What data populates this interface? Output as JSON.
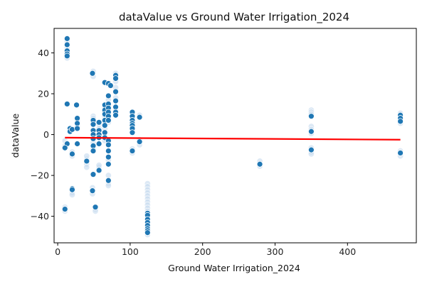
{
  "chart_data": {
    "type": "scatter",
    "title": "dataValue vs Ground Water Irrigation_2024",
    "xlabel": "Ground Water Irrigation_2024",
    "ylabel": "dataValue",
    "xlim": [
      -5,
      495
    ],
    "ylim": [
      -53,
      52
    ],
    "xticks": [
      0,
      100,
      200,
      300,
      400
    ],
    "yticks": [
      -40,
      -20,
      0,
      20,
      40
    ],
    "grid": false,
    "colors": {
      "points": "#1f77b4",
      "halo": "#c6dbef",
      "trend": "#ff0000"
    },
    "trend_line": {
      "x": [
        10,
        473
      ],
      "y": [
        -1.5,
        -2.5
      ]
    },
    "points": [
      [
        13,
        47
      ],
      [
        13,
        44
      ],
      [
        13,
        41
      ],
      [
        13,
        39.5
      ],
      [
        13,
        38.5
      ],
      [
        13,
        15
      ],
      [
        13,
        -4.5
      ],
      [
        10,
        -6.5
      ],
      [
        10,
        -36.5
      ],
      [
        17,
        3
      ],
      [
        17,
        1.5
      ],
      [
        20,
        2.5
      ],
      [
        20,
        -9.5
      ],
      [
        20,
        -26.5
      ],
      [
        20,
        -27
      ],
      [
        26,
        14.5
      ],
      [
        27,
        8
      ],
      [
        27,
        5.5
      ],
      [
        27,
        3
      ],
      [
        27,
        -4.5
      ],
      [
        40,
        -13
      ],
      [
        48,
        30
      ],
      [
        49,
        7
      ],
      [
        49,
        5
      ],
      [
        49,
        2
      ],
      [
        49,
        0
      ],
      [
        49,
        -2
      ],
      [
        49,
        -5.5
      ],
      [
        49,
        -8
      ],
      [
        49,
        -19.5
      ],
      [
        48,
        -27.5
      ],
      [
        52,
        -35.5
      ],
      [
        57,
        6
      ],
      [
        57,
        2
      ],
      [
        57,
        0
      ],
      [
        57,
        -1.5
      ],
      [
        57,
        -4.5
      ],
      [
        57,
        -17.5
      ],
      [
        65,
        25.5
      ],
      [
        65,
        14.5
      ],
      [
        65,
        12
      ],
      [
        65,
        10
      ],
      [
        65,
        7
      ],
      [
        65,
        4.5
      ],
      [
        65,
        1
      ],
      [
        65,
        -1.5
      ],
      [
        70,
        25
      ],
      [
        70,
        19
      ],
      [
        70,
        15
      ],
      [
        70,
        13
      ],
      [
        70,
        11
      ],
      [
        70,
        9
      ],
      [
        70,
        7
      ],
      [
        70,
        -3
      ],
      [
        70,
        -5
      ],
      [
        70,
        -8
      ],
      [
        70,
        -11
      ],
      [
        70,
        -14.5
      ],
      [
        70,
        -22.5
      ],
      [
        73,
        24
      ],
      [
        80,
        29
      ],
      [
        80,
        27.5
      ],
      [
        80,
        21
      ],
      [
        80,
        16.5
      ],
      [
        80,
        13.5
      ],
      [
        80,
        11
      ],
      [
        80,
        9.5
      ],
      [
        103,
        11
      ],
      [
        103,
        9
      ],
      [
        103,
        7
      ],
      [
        103,
        5.5
      ],
      [
        103,
        4.5
      ],
      [
        103,
        3
      ],
      [
        103,
        1
      ],
      [
        103,
        -8
      ],
      [
        113,
        8.5
      ],
      [
        113,
        -3.5
      ],
      [
        124,
        -38.5
      ],
      [
        124,
        -39.5
      ],
      [
        124,
        -41.5
      ],
      [
        124,
        -43
      ],
      [
        124,
        -44.5
      ],
      [
        124,
        -46
      ],
      [
        124,
        -47
      ],
      [
        124,
        -48
      ],
      [
        279,
        -14.5
      ],
      [
        350,
        9
      ],
      [
        350,
        1.5
      ],
      [
        350,
        -7.5
      ],
      [
        473,
        9.5
      ],
      [
        473,
        8
      ],
      [
        473,
        6.5
      ],
      [
        473,
        -9
      ]
    ],
    "halo_points": [
      [
        13,
        45.5
      ],
      [
        13,
        42.5
      ],
      [
        13,
        40
      ],
      [
        13,
        37.5
      ],
      [
        10,
        -35.5
      ],
      [
        10,
        -37.5
      ],
      [
        10,
        -5.5
      ],
      [
        10,
        -3
      ],
      [
        20,
        -28.5
      ],
      [
        20,
        -29.5
      ],
      [
        20,
        -10.5
      ],
      [
        20,
        -8.5
      ],
      [
        27,
        6.5
      ],
      [
        27,
        4
      ],
      [
        40,
        -12
      ],
      [
        40,
        -14.5
      ],
      [
        40,
        -16
      ],
      [
        40,
        -10.5
      ],
      [
        49,
        31
      ],
      [
        49,
        28.5
      ],
      [
        49,
        9
      ],
      [
        49,
        8
      ],
      [
        49,
        6
      ],
      [
        49,
        -4
      ],
      [
        49,
        -7
      ],
      [
        48,
        -26
      ],
      [
        48,
        -29
      ],
      [
        52,
        -36.5
      ],
      [
        52,
        -37.5
      ],
      [
        57,
        -16
      ],
      [
        57,
        -15
      ],
      [
        57,
        5
      ],
      [
        57,
        3
      ],
      [
        65,
        13
      ],
      [
        65,
        11
      ],
      [
        65,
        9
      ],
      [
        65,
        6
      ],
      [
        65,
        3
      ],
      [
        65,
        -3
      ],
      [
        70,
        17
      ],
      [
        70,
        12
      ],
      [
        70,
        6
      ],
      [
        70,
        -20
      ],
      [
        70,
        -24
      ],
      [
        70,
        -25
      ],
      [
        70,
        -12.5
      ],
      [
        80,
        30
      ],
      [
        80,
        28
      ],
      [
        80,
        26
      ],
      [
        80,
        23
      ],
      [
        80,
        18
      ],
      [
        80,
        12
      ],
      [
        103,
        10
      ],
      [
        103,
        8
      ],
      [
        103,
        6
      ],
      [
        103,
        2
      ],
      [
        103,
        -7
      ],
      [
        103,
        -9
      ],
      [
        113,
        9.5
      ],
      [
        113,
        -2.5
      ],
      [
        113,
        -5
      ],
      [
        124,
        -24
      ],
      [
        124,
        -25.5
      ],
      [
        124,
        -27
      ],
      [
        124,
        -28.5
      ],
      [
        124,
        -30
      ],
      [
        124,
        -31.5
      ],
      [
        124,
        -33
      ],
      [
        124,
        -34.5
      ],
      [
        124,
        -36
      ],
      [
        124,
        -37.5
      ],
      [
        124,
        -40.5
      ],
      [
        124,
        -42.5
      ],
      [
        124,
        -45
      ],
      [
        124,
        -47.5
      ],
      [
        124,
        -49
      ],
      [
        279,
        -13
      ],
      [
        279,
        -15.5
      ],
      [
        350,
        12
      ],
      [
        350,
        11
      ],
      [
        350,
        10
      ],
      [
        350,
        4
      ],
      [
        350,
        2.5
      ],
      [
        350,
        0.5
      ],
      [
        350,
        -6.5
      ],
      [
        350,
        -8.5
      ],
      [
        350,
        -9.5
      ],
      [
        473,
        10.5
      ],
      [
        473,
        7
      ],
      [
        473,
        5.5
      ],
      [
        473,
        -8
      ],
      [
        473,
        -10.5
      ]
    ]
  }
}
